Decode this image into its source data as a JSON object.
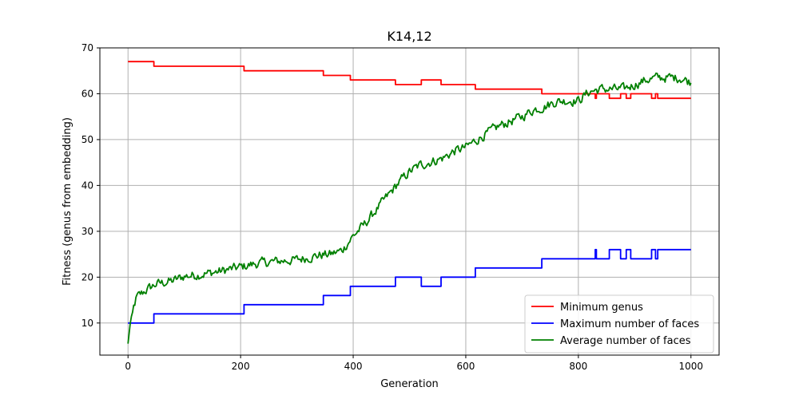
{
  "chart_data": {
    "type": "line",
    "title": "K14,12",
    "xlabel": "Generation",
    "ylabel": "Fitness (genus from embedding)",
    "xlim": [
      -50,
      1050
    ],
    "ylim": [
      3,
      70
    ],
    "xticks": [
      0,
      200,
      400,
      600,
      800,
      1000
    ],
    "yticks": [
      10,
      20,
      30,
      40,
      50,
      60,
      70
    ],
    "grid": true,
    "legend_position": "lower-right",
    "series": [
      {
        "name": "Minimum genus",
        "color": "#ff0000",
        "style": "step",
        "x": [
          0,
          46,
          46,
          206,
          206,
          347,
          347,
          395,
          395,
          475,
          475,
          521,
          521,
          556,
          556,
          617,
          617,
          735,
          735,
          830,
          830,
          832,
          832,
          855,
          855,
          875,
          875,
          885,
          885,
          893,
          893,
          905,
          905,
          930,
          930,
          937,
          937,
          941,
          941,
          944,
          944,
          1000
        ],
        "y": [
          67,
          67,
          66,
          66,
          65,
          65,
          64,
          64,
          63,
          63,
          62,
          62,
          63,
          63,
          62,
          62,
          61,
          61,
          60,
          60,
          59,
          59,
          60,
          60,
          59,
          59,
          60,
          60,
          59,
          59,
          60,
          60,
          60,
          60,
          59,
          59,
          60,
          60,
          59,
          59,
          59,
          59
        ]
      },
      {
        "name": "Maximum number of faces",
        "color": "#0000ff",
        "style": "step",
        "x": [
          0,
          46,
          46,
          206,
          206,
          347,
          347,
          395,
          395,
          475,
          475,
          521,
          521,
          556,
          556,
          617,
          617,
          735,
          735,
          830,
          830,
          832,
          832,
          855,
          855,
          875,
          875,
          885,
          885,
          893,
          893,
          905,
          905,
          930,
          930,
          937,
          937,
          941,
          941,
          944,
          944,
          1000
        ],
        "y": [
          10,
          10,
          12,
          12,
          14,
          14,
          16,
          16,
          18,
          18,
          20,
          20,
          18,
          18,
          20,
          20,
          22,
          22,
          24,
          24,
          26,
          26,
          24,
          24,
          26,
          26,
          24,
          24,
          26,
          26,
          24,
          24,
          24,
          24,
          26,
          26,
          24,
          24,
          26,
          26,
          26,
          26
        ]
      },
      {
        "name": "Average number of faces",
        "color": "#008000",
        "style": "noisy",
        "noise": 0.9,
        "x": [
          0,
          5,
          15,
          30,
          50,
          80,
          100,
          130,
          160,
          200,
          230,
          260,
          300,
          340,
          360,
          380,
          400,
          420,
          440,
          460,
          480,
          500,
          520,
          540,
          560,
          580,
          600,
          620,
          640,
          660,
          680,
          700,
          720,
          740,
          760,
          780,
          800,
          820,
          840,
          860,
          880,
          900,
          920,
          940,
          960,
          980,
          1000
        ],
        "y": [
          5.5,
          11,
          15.5,
          17,
          18.5,
          19.2,
          20.2,
          20.6,
          21.2,
          22.2,
          23,
          23.4,
          23.8,
          24.8,
          25,
          25.8,
          29,
          31.5,
          34.5,
          37.5,
          40.5,
          43,
          44.5,
          45.2,
          46,
          47.5,
          48.3,
          50,
          51.5,
          53,
          54,
          55,
          56.5,
          57.2,
          58.3,
          58.5,
          58.5,
          60.5,
          61,
          61,
          61,
          62,
          63,
          63.5,
          63.5,
          63.5,
          62.5
        ]
      }
    ]
  }
}
